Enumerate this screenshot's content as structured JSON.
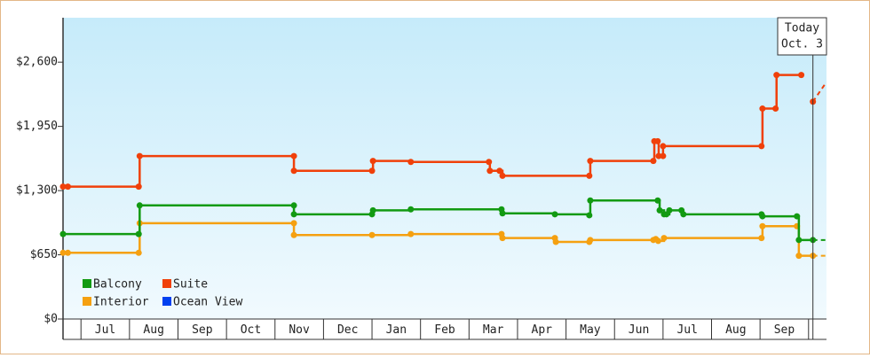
{
  "chart_data": {
    "type": "step-line",
    "categories": [
      "Jul",
      "Aug",
      "Sep",
      "Oct",
      "Nov",
      "Dec",
      "Jan",
      "Feb",
      "Mar",
      "Apr",
      "May",
      "Jun",
      "Jul",
      "Aug",
      "Sep"
    ],
    "xlim": [
      -0.37,
      15.37
    ],
    "ylim": [
      0,
      3050
    ],
    "yticks": [
      {
        "value": 0,
        "label": "$0"
      },
      {
        "value": 650,
        "label": "$650"
      },
      {
        "value": 1300,
        "label": "$1,300"
      },
      {
        "value": 1950,
        "label": "$1,950"
      },
      {
        "value": 2600,
        "label": "$2,600"
      }
    ],
    "today": {
      "x": 15.09,
      "label": "Today",
      "date": "Oct. 3"
    },
    "forecast_x": [
      15.09,
      15.37
    ],
    "series": [
      {
        "name": "Balcony",
        "color": "#129a12",
        "x": [
          -0.37,
          1.19,
          1.21,
          4.39,
          4.39,
          6.0,
          6.02,
          6.8,
          8.67,
          8.69,
          9.77,
          10.48,
          10.5,
          11.89,
          11.93,
          12.02,
          12.07,
          12.13,
          12.38,
          12.42,
          14.03,
          14.05,
          14.76,
          14.8,
          15.09
        ],
        "values": [
          860,
          860,
          1150,
          1150,
          1060,
          1060,
          1100,
          1110,
          1110,
          1070,
          1060,
          1050,
          1200,
          1200,
          1100,
          1060,
          1060,
          1100,
          1100,
          1060,
          1060,
          1040,
          1040,
          800,
          800
        ],
        "forecast": [
          800,
          800
        ]
      },
      {
        "name": "Suite",
        "color": "#f0400a",
        "x": [
          -0.37,
          -0.27,
          1.19,
          1.21,
          4.39,
          4.39,
          6.0,
          6.02,
          6.8,
          8.41,
          8.43,
          8.63,
          8.69,
          10.48,
          10.5,
          11.8,
          11.82,
          11.89,
          11.91,
          12.0,
          12.0,
          14.03,
          14.05,
          14.32,
          14.34,
          14.85,
          15.0,
          15.09
        ],
        "values": [
          1340,
          1340,
          1340,
          1650,
          1650,
          1500,
          1500,
          1600,
          1590,
          1590,
          1500,
          1500,
          1450,
          1450,
          1600,
          1600,
          1800,
          1800,
          1650,
          1650,
          1750,
          1750,
          2130,
          2130,
          2470,
          2470,
          null,
          2200
        ],
        "forecast": [
          2200,
          2400
        ]
      },
      {
        "name": "Interior",
        "color": "#f5a010",
        "x": [
          -0.37,
          -0.27,
          1.19,
          1.21,
          4.39,
          4.39,
          6.0,
          6.8,
          8.67,
          8.69,
          9.77,
          9.79,
          10.48,
          10.5,
          11.8,
          11.85,
          11.9,
          12.02,
          14.03,
          14.05,
          14.76,
          14.8,
          15.09
        ],
        "values": [
          670,
          670,
          670,
          970,
          970,
          850,
          850,
          860,
          860,
          820,
          820,
          780,
          780,
          800,
          800,
          810,
          790,
          820,
          820,
          940,
          940,
          640,
          640
        ],
        "forecast": [
          640,
          640
        ]
      },
      {
        "name": "Ocean View",
        "color": "#0040f0",
        "x": [],
        "values": [],
        "forecast": []
      }
    ]
  }
}
